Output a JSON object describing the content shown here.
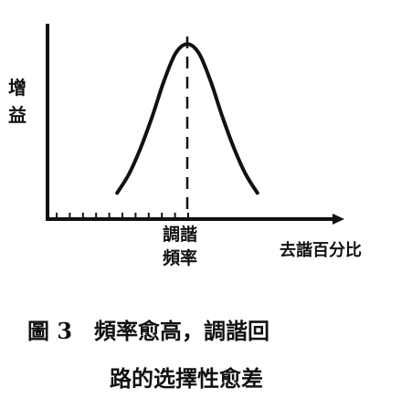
{
  "chart_data": {
    "type": "line",
    "title": "",
    "ylabel": "增益",
    "xlabel": "去諧百分比",
    "center_label_line1": "調諧",
    "center_label_line2": "頻率",
    "xlim": [
      -5,
      5
    ],
    "ylim": [
      0,
      1
    ],
    "grid": false,
    "legend": "none",
    "series": [
      {
        "x": [
          -2.4,
          -2.0,
          -1.6,
          -1.2,
          -0.8,
          -0.4,
          0.0,
          0.4,
          0.8,
          1.2,
          1.6,
          2.0,
          2.4
        ],
        "y": [
          0.14,
          0.24,
          0.38,
          0.55,
          0.74,
          0.89,
          0.94,
          0.89,
          0.74,
          0.55,
          0.38,
          0.24,
          0.14
        ]
      }
    ],
    "center_marker_x": 0
  },
  "caption": {
    "line1": "圖 3　頻率愈高，調諧回",
    "line2": "路的选擇性愈差"
  }
}
